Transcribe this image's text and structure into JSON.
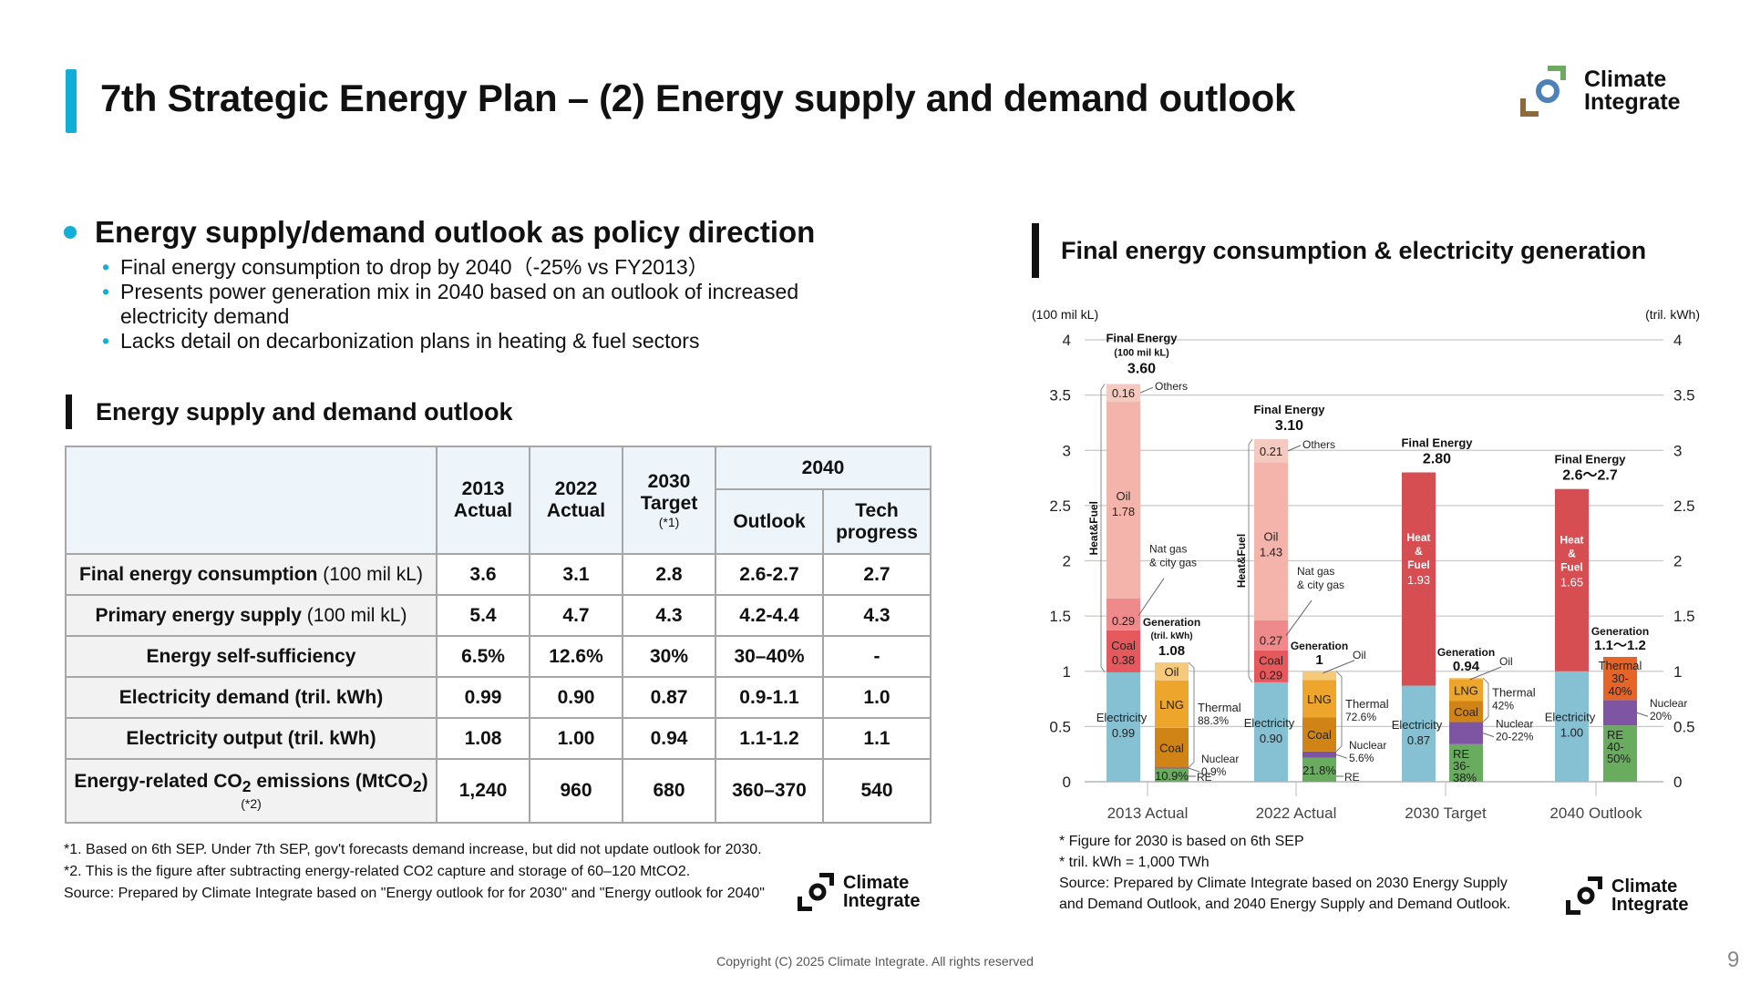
{
  "header": {
    "title": "7th Strategic Energy Plan – (2) Energy supply and demand outlook",
    "logo_line1": "Climate",
    "logo_line2": "Integrate"
  },
  "summary": {
    "heading": "Energy supply/demand outlook as policy direction",
    "points": [
      "Final energy consumption to drop by 2040（-25% vs FY2013）",
      "Presents power generation mix in 2040 based on an outlook of increased electricity demand",
      "Lacks detail on decarbonization plans in heating & fuel sectors"
    ]
  },
  "table_section": {
    "heading": "Energy supply and demand outlook",
    "columns": {
      "c2013": [
        "2013",
        "Actual"
      ],
      "c2022": [
        "2022",
        "Actual"
      ],
      "c2030": [
        "2030",
        "Target",
        "(*1)"
      ],
      "c2040": "2040",
      "c2040_outlook": "Outlook",
      "c2040_tech": [
        "Tech",
        "progress"
      ]
    },
    "rows": [
      {
        "label_bold": "Final energy consumption",
        "label_unit": " (100 mil kL)",
        "values": [
          "3.6",
          "3.1",
          "2.8",
          "2.6-2.7",
          "2.7"
        ]
      },
      {
        "label_bold": "Primary energy supply",
        "label_unit": " (100 mil kL)",
        "values": [
          "5.4",
          "4.7",
          "4.3",
          "4.2-4.4",
          "4.3"
        ]
      },
      {
        "label_bold": "Energy self-sufficiency",
        "label_unit": "",
        "values": [
          "6.5%",
          "12.6%",
          "30%",
          "30–40%",
          "-"
        ]
      },
      {
        "label_bold": "Electricity demand (tril. kWh)",
        "label_unit": "",
        "values": [
          "0.99",
          "0.90",
          "0.87",
          "0.9-1.1",
          "1.0"
        ]
      },
      {
        "label_bold": "Electricity output (tril. kWh)",
        "label_unit": "",
        "values": [
          "1.08",
          "1.00",
          "0.94",
          "1.1-1.2",
          "1.1"
        ]
      },
      {
        "label_bold": "Energy-related CO",
        "label_sub": "2",
        "label_mid": " emissions (MtCO",
        "label_sub2": "2",
        "label_end": ")",
        "label_note": "(*2)",
        "values": [
          "1,240",
          "960",
          "680",
          "360–370",
          "540"
        ]
      }
    ],
    "notes": [
      "*1. Based on 6th SEP. Under 7th SEP, gov't forecasts demand increase, but did not update outlook for 2030.",
      "*2. This is the figure after subtracting energy-related CO2 capture and storage of 60–120 MtCO2.",
      "Source: Prepared by Climate Integrate based on \"Energy outlook for for 2030\" and \"Energy outlook for 2040\""
    ]
  },
  "chart_section": {
    "heading": "Final energy consumption & electricity generation",
    "notes": [
      "* Figure for 2030 is based on 6th SEP",
      "* tril. kWh = 1,000 TWh",
      "Source: Prepared by Climate Integrate based on 2030 Energy Supply",
      "and Demand Outlook, and 2040 Energy Supply and Demand Outlook."
    ]
  },
  "chart_data": {
    "type": "bar",
    "stacked": true,
    "title": "Final energy consumption & electricity generation",
    "ylabel_left": "(100 mil kL)",
    "ylabel_right": "(tril. kWh)",
    "ylim": [
      0,
      4
    ],
    "yticks": [
      0,
      0.5,
      1,
      1.5,
      2,
      2.5,
      3,
      3.5,
      4
    ],
    "ytick_labels": [
      "0",
      "0.5",
      "1",
      "1.5",
      "2",
      "2.5",
      "3",
      "3.5",
      "4"
    ],
    "grid": true,
    "categories": [
      "2013 Actual",
      "2022 Actual",
      "2030 Target",
      "2040 Outlook"
    ],
    "colors": {
      "electricity": "#86c0d3",
      "coal_fuel": "#e5585b",
      "natgas": "#ee8a8b",
      "oil_fuel": "#f4b3ab",
      "others": "#f3c9c0",
      "heatfuel": "#d64d52",
      "gen_re": "#69ab5f",
      "gen_nuclear": "#7e55a3",
      "gen_coal": "#cf8415",
      "gen_lng": "#eea52c",
      "gen_oil": "#f6c97b",
      "gen_thermal": "#e46525"
    },
    "final_energy": [
      {
        "category": "2013 Actual",
        "title": "Final Energy",
        "subtitle": "(100 mil kL)",
        "total_label": "3.60",
        "side_label": "Heat&Fuel",
        "segments": [
          {
            "name": "Electricity",
            "value": 0.99,
            "label": "Electricity",
            "value_label": "0.99",
            "color": "electricity"
          },
          {
            "name": "Coal",
            "value": 0.38,
            "label": "Coal",
            "value_label": "0.38",
            "color": "coal_fuel"
          },
          {
            "name": "Nat gas & city gas",
            "value": 0.29,
            "label": "",
            "value_label": "0.29",
            "color": "natgas"
          },
          {
            "name": "Oil",
            "value": 1.78,
            "label": "Oil",
            "value_label": "1.78",
            "color": "oil_fuel"
          },
          {
            "name": "Others",
            "value": 0.16,
            "label": "",
            "value_label": "0.16",
            "color": "others"
          }
        ]
      },
      {
        "category": "2022 Actual",
        "title": "Final Energy",
        "subtitle": "",
        "total_label": "3.10",
        "side_label": "Heat&Fuel",
        "segments": [
          {
            "name": "Electricity",
            "value": 0.9,
            "label": "Electricity",
            "value_label": "0.90",
            "color": "electricity"
          },
          {
            "name": "Coal",
            "value": 0.29,
            "label": "Coal",
            "value_label": "0.29",
            "color": "coal_fuel"
          },
          {
            "name": "Nat gas & city gas",
            "value": 0.27,
            "label": "",
            "value_label": "0.27",
            "color": "natgas"
          },
          {
            "name": "Oil",
            "value": 1.43,
            "label": "Oil",
            "value_label": "1.43",
            "color": "oil_fuel"
          },
          {
            "name": "Others",
            "value": 0.21,
            "label": "",
            "value_label": "0.21",
            "color": "others"
          }
        ]
      },
      {
        "category": "2030 Target",
        "title": "Final Energy",
        "subtitle": "",
        "total_label": "2.80",
        "side_label": "",
        "segments": [
          {
            "name": "Electricity",
            "value": 0.87,
            "label": "Electricity",
            "value_label": "0.87",
            "color": "electricity"
          },
          {
            "name": "Heat & Fuel",
            "value": 1.93,
            "label": "Heat & Fuel",
            "value_label": "1.93",
            "color": "heatfuel"
          }
        ]
      },
      {
        "category": "2040 Outlook",
        "title": "Final Energy",
        "subtitle": "",
        "total_label": "2.6〜2.7",
        "side_label": "",
        "segments": [
          {
            "name": "Electricity",
            "value": 1.0,
            "label": "Electricity",
            "value_label": "1.00",
            "color": "electricity"
          },
          {
            "name": "Heat & Fuel",
            "value": 1.65,
            "label": "Heat & Fuel",
            "value_label": "1.65",
            "color": "heatfuel"
          }
        ]
      }
    ],
    "generation": [
      {
        "category": "2013 Actual",
        "title": "Generation",
        "subtitle": "(tril. kWh)",
        "total_label": "1.08",
        "segments": [
          {
            "name": "RE",
            "value": 0.118,
            "label": "10.9%",
            "color": "gen_re"
          },
          {
            "name": "Nuclear",
            "value": 0.01,
            "label": "",
            "color": "gen_nuclear"
          },
          {
            "name": "Coal",
            "value": 0.36,
            "label": "Coal",
            "color": "gen_coal"
          },
          {
            "name": "LNG",
            "value": 0.43,
            "label": "LNG",
            "color": "gen_lng"
          },
          {
            "name": "Oil",
            "value": 0.162,
            "label": "Oil",
            "color": "gen_oil"
          }
        ],
        "annotations": {
          "thermal": [
            "Thermal",
            "88.3%"
          ],
          "nuclear": [
            "Nuclear",
            "0.9%"
          ],
          "re": "RE",
          "oil": ""
        }
      },
      {
        "category": "2022 Actual",
        "title": "Generation",
        "subtitle": "",
        "total_label": "1",
        "segments": [
          {
            "name": "RE",
            "value": 0.218,
            "label": "21.8%",
            "color": "gen_re"
          },
          {
            "name": "Nuclear",
            "value": 0.056,
            "label": "",
            "color": "gen_nuclear"
          },
          {
            "name": "Coal",
            "value": 0.31,
            "label": "Coal",
            "color": "gen_coal"
          },
          {
            "name": "LNG",
            "value": 0.336,
            "label": "LNG",
            "color": "gen_lng"
          },
          {
            "name": "Oil",
            "value": 0.08,
            "label": "",
            "color": "gen_oil"
          }
        ],
        "annotations": {
          "thermal": [
            "Thermal",
            "72.6%"
          ],
          "nuclear": [
            "Nuclear",
            "5.6%"
          ],
          "re": "RE",
          "oil": "Oil"
        }
      },
      {
        "category": "2030 Target",
        "title": "Generation",
        "subtitle": "",
        "total_label": "0.94",
        "segments": [
          {
            "name": "RE",
            "value": 0.34,
            "label": "RE 36-38%",
            "color": "gen_re"
          },
          {
            "name": "Nuclear",
            "value": 0.2,
            "label": "",
            "color": "gen_nuclear"
          },
          {
            "name": "Coal",
            "value": 0.19,
            "label": "Coal",
            "color": "gen_coal"
          },
          {
            "name": "LNG",
            "value": 0.2,
            "label": "LNG",
            "color": "gen_lng"
          },
          {
            "name": "Oil",
            "value": 0.01,
            "label": "",
            "color": "gen_oil"
          }
        ],
        "annotations": {
          "thermal": [
            "Thermal",
            "42%"
          ],
          "nuclear": [
            "Nuclear",
            "20-22%"
          ],
          "re": "",
          "oil": "Oil"
        }
      },
      {
        "category": "2040 Outlook",
        "title": "Generation",
        "subtitle": "",
        "total_label": "1.1〜1.2",
        "segments": [
          {
            "name": "RE",
            "value": 0.51,
            "label": "RE 40-50%",
            "color": "gen_re"
          },
          {
            "name": "Nuclear",
            "value": 0.23,
            "label": "",
            "color": "gen_nuclear"
          },
          {
            "name": "Thermal",
            "value": 0.39,
            "label": "Thermal 30-40%",
            "color": "gen_thermal"
          }
        ],
        "annotations": {
          "thermal": [
            "",
            ""
          ],
          "nuclear": [
            "Nuclear",
            "20%"
          ],
          "re": "",
          "oil": ""
        }
      }
    ]
  },
  "footer": {
    "copyright": "Copyright (C) 2025 Climate Integrate. All rights reserved",
    "page": "9"
  }
}
